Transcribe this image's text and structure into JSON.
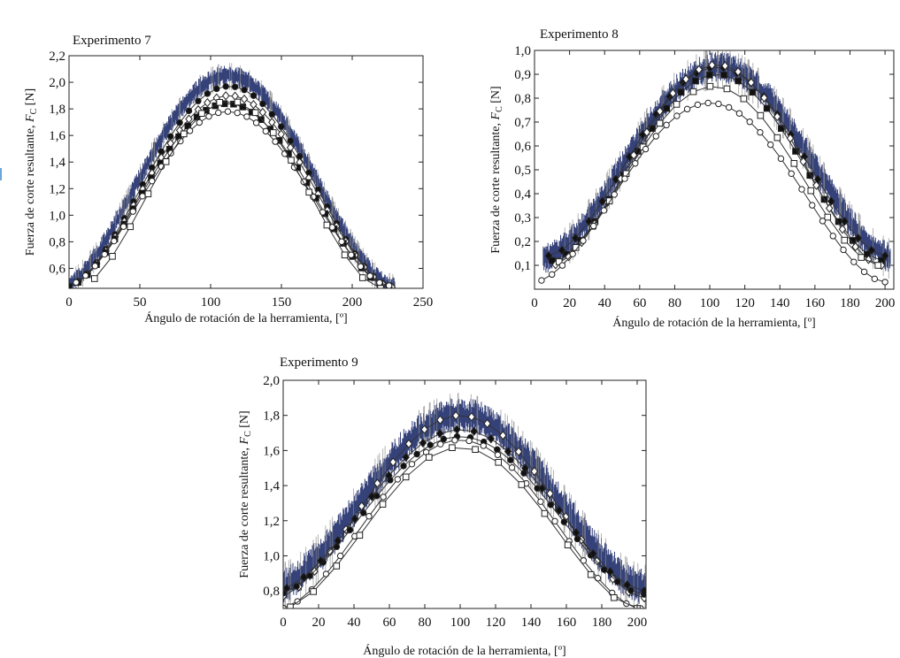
{
  "chart_data": [
    {
      "type": "line",
      "title": "Experimento 7",
      "xlabel": "Ángulo de rotación de la herramienta, [º]",
      "ylabel": "Fuerza de corte resultante, F_C [N]",
      "ylabel_main": "Fuerza de corte resultante, ",
      "ylabel_sym": "F",
      "ylabel_sub": "C",
      "ylabel_unit": " [N]",
      "xlim": [
        0,
        250
      ],
      "ylim": [
        0.45,
        2.2
      ],
      "xticks": [
        0,
        50,
        100,
        150,
        200,
        250
      ],
      "xtick_labels": [
        "0",
        "50",
        "100",
        "150",
        "200",
        "250"
      ],
      "yticks": [
        0.6,
        0.8,
        1.0,
        1.2,
        1.4,
        1.6,
        1.8,
        2.0,
        2.2
      ],
      "ytick_labels": [
        "0,6",
        "0,8",
        "1,0",
        "1,2",
        "1,4",
        "1,6",
        "1,8",
        "2,0",
        "2,2"
      ],
      "grid": false,
      "band": {
        "x_start": 0,
        "x_end": 230,
        "peak_x": 112,
        "peak": 2.05,
        "base": 0.46,
        "spread": 0.06,
        "color": "#1f2d6b"
      },
      "series": [
        {
          "marker": "filled-circle",
          "x_start": 0,
          "x_end": 228,
          "peak_x": 113,
          "peak": 1.97,
          "base": 0.46,
          "n": 36
        },
        {
          "marker": "open-diamond",
          "x_start": 0,
          "x_end": 228,
          "peak_x": 113,
          "peak": 1.9,
          "base": 0.46,
          "n": 36
        },
        {
          "marker": "filled-square",
          "x_start": 0,
          "x_end": 226,
          "peak_x": 112,
          "peak": 1.84,
          "base": 0.46,
          "n": 36
        },
        {
          "marker": "open-circle",
          "x_start": 5,
          "x_end": 226,
          "peak_x": 112,
          "peak": 1.78,
          "base": 0.47,
          "n": 34
        },
        {
          "marker": "open-square",
          "x_start": 18,
          "x_end": 220,
          "peak_x": 113,
          "peak": 1.86,
          "base": 0.45,
          "n": 17
        }
      ]
    },
    {
      "type": "line",
      "title": "Experimento 8",
      "xlabel": "Ángulo de rotación de la herramienta, [º]",
      "ylabel": "Fuerza de corte resultante, F_C [N]",
      "ylabel_main": "Fuerza de corte resultante, ",
      "ylabel_sym": "F",
      "ylabel_sub": "C",
      "ylabel_unit": " [N]",
      "xlim": [
        0,
        205
      ],
      "ylim": [
        0.0,
        1.0
      ],
      "xticks": [
        0,
        20,
        40,
        60,
        80,
        100,
        120,
        140,
        160,
        180,
        200
      ],
      "xtick_labels": [
        "0",
        "20",
        "40",
        "60",
        "80",
        "100",
        "120",
        "140",
        "160",
        "180",
        "200"
      ],
      "yticks": [
        0.1,
        0.2,
        0.3,
        0.4,
        0.5,
        0.6,
        0.7,
        0.8,
        0.9,
        1.0
      ],
      "ytick_labels": [
        "0,1",
        "0,2",
        "0,3",
        "0,4",
        "0,5",
        "0,6",
        "0,7",
        "0,8",
        "0,9",
        "1,0"
      ],
      "grid": false,
      "band": {
        "x_start": 5,
        "x_end": 203,
        "peak_x": 105,
        "peak": 0.93,
        "base": 0.13,
        "spread": 0.05,
        "color": "#1f2d6b"
      },
      "series": [
        {
          "marker": "filled-diamond",
          "x_start": 8,
          "x_end": 200,
          "peak_x": 104,
          "peak": 0.93,
          "base": 0.14,
          "n": 26
        },
        {
          "marker": "filled-square",
          "x_start": 10,
          "x_end": 198,
          "peak_x": 104,
          "peak": 0.9,
          "base": 0.12,
          "n": 24
        },
        {
          "marker": "open-diamond",
          "x_start": 12,
          "x_end": 198,
          "peak_x": 104,
          "peak": 0.94,
          "base": 0.1,
          "n": 26
        },
        {
          "marker": "open-square",
          "x_start": 14,
          "x_end": 196,
          "peak_x": 102,
          "peak": 0.85,
          "base": 0.1,
          "n": 20
        },
        {
          "marker": "open-circle",
          "x_start": 4,
          "x_end": 200,
          "peak_x": 100,
          "peak": 0.78,
          "base": 0.03,
          "n": 34
        }
      ]
    },
    {
      "type": "line",
      "title": "Experimento 9",
      "xlabel": "Ángulo de rotación de la herramienta, [º]",
      "ylabel": "Fuerza de corte resultante, F_C [N]",
      "ylabel_main": "Fuerza de corte resultante, ",
      "ylabel_sym": "F",
      "ylabel_sub": "C",
      "ylabel_unit": " [N]",
      "xlim": [
        0,
        205
      ],
      "ylim": [
        0.7,
        2.0
      ],
      "xticks": [
        0,
        20,
        40,
        60,
        80,
        100,
        120,
        140,
        160,
        180,
        200
      ],
      "xtick_labels": [
        "0",
        "20",
        "40",
        "60",
        "80",
        "100",
        "120",
        "140",
        "160",
        "180",
        "200"
      ],
      "yticks": [
        0.8,
        1.0,
        1.2,
        1.4,
        1.6,
        1.8,
        2.0
      ],
      "ytick_labels": [
        "0,8",
        "1,0",
        "1,2",
        "1,4",
        "1,6",
        "1,8",
        "2,0"
      ],
      "grid": false,
      "band": {
        "x_start": 0,
        "x_end": 205,
        "peak_x": 100,
        "peak": 1.8,
        "base": 0.82,
        "spread": 0.08,
        "color": "#1f2d6b"
      },
      "series": [
        {
          "marker": "open-diamond",
          "x_start": 0,
          "x_end": 204,
          "peak_x": 100,
          "peak": 1.8,
          "base": 0.76,
          "n": 24
        },
        {
          "marker": "filled-circle",
          "x_start": 0,
          "x_end": 204,
          "peak_x": 100,
          "peak": 1.68,
          "base": 0.78,
          "n": 28
        },
        {
          "marker": "filled-diamond",
          "x_start": 2,
          "x_end": 204,
          "peak_x": 100,
          "peak": 1.72,
          "base": 0.8,
          "n": 22
        },
        {
          "marker": "open-circle",
          "x_start": 0,
          "x_end": 202,
          "peak_x": 100,
          "peak": 1.66,
          "base": 0.7,
          "n": 26
        },
        {
          "marker": "open-square",
          "x_start": 4,
          "x_end": 200,
          "peak_x": 100,
          "peak": 1.62,
          "base": 0.7,
          "n": 16
        }
      ]
    }
  ]
}
